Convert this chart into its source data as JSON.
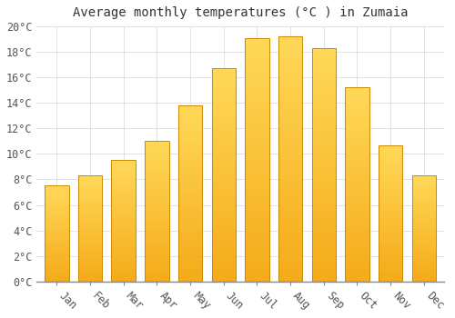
{
  "title": "Average monthly temperatures (°C ) in Zumaia",
  "months": [
    "Jan",
    "Feb",
    "Mar",
    "Apr",
    "May",
    "Jun",
    "Jul",
    "Aug",
    "Sep",
    "Oct",
    "Nov",
    "Dec"
  ],
  "values": [
    7.5,
    8.3,
    9.5,
    11.0,
    13.8,
    16.7,
    19.1,
    19.2,
    18.3,
    15.2,
    10.7,
    8.3
  ],
  "bar_color_bottom": "#F5A800",
  "bar_color_mid": "#FFD050",
  "bar_color_edge": "#CC8800",
  "ylim": [
    0,
    20
  ],
  "ytick_step": 2,
  "background_color": "#FFFFFF",
  "grid_color": "#DDDDDD",
  "title_fontsize": 10,
  "tick_fontsize": 8.5,
  "font_family": "monospace"
}
